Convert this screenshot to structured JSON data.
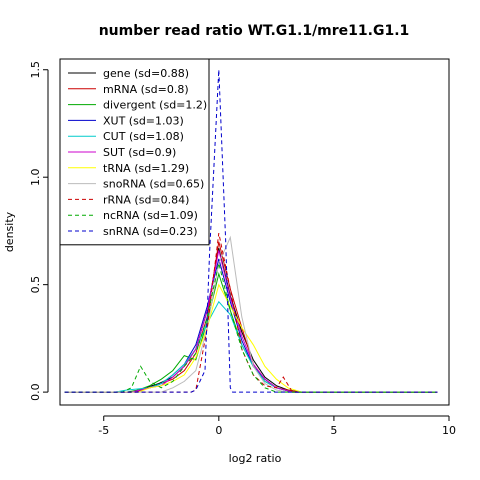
{
  "chart_data": {
    "type": "line",
    "title": "number read ratio WT.G1.1/mre11.G1.1",
    "xlabel": "log2 ratio",
    "ylabel": "density",
    "xlim": [
      -6.9,
      10.0
    ],
    "ylim": [
      -0.06,
      1.55
    ],
    "xticks": [
      -5,
      0,
      5,
      10
    ],
    "yticks": [
      0.0,
      0.5,
      1.0,
      1.5
    ],
    "xtick_labels": [
      "-5",
      "0",
      "5",
      "10"
    ],
    "ytick_labels": [
      "0.0",
      "0.5",
      "1.0",
      "1.5"
    ],
    "grid": false,
    "legend_position": "top-left",
    "series": [
      {
        "name": "gene (sd=0.88)",
        "color": "#000000",
        "dash": "solid",
        "points": [
          [
            -6.7,
            0
          ],
          [
            -3.8,
            0
          ],
          [
            -3.2,
            0.02
          ],
          [
            -2.6,
            0.04
          ],
          [
            -2.0,
            0.07
          ],
          [
            -1.5,
            0.12
          ],
          [
            -1.0,
            0.2
          ],
          [
            -0.5,
            0.38
          ],
          [
            0.0,
            0.67
          ],
          [
            0.5,
            0.45
          ],
          [
            1.0,
            0.28
          ],
          [
            1.5,
            0.15
          ],
          [
            2.0,
            0.07
          ],
          [
            2.5,
            0.03
          ],
          [
            3.0,
            0.01
          ],
          [
            3.6,
            0
          ],
          [
            9.5,
            0
          ]
        ]
      },
      {
        "name": "mRNA (sd=0.8)",
        "color": "#cc0000",
        "dash": "solid",
        "points": [
          [
            -6.7,
            0
          ],
          [
            -3.6,
            0
          ],
          [
            -3.0,
            0.02
          ],
          [
            -2.5,
            0.04
          ],
          [
            -2.0,
            0.06
          ],
          [
            -1.5,
            0.1
          ],
          [
            -1.0,
            0.18
          ],
          [
            -0.5,
            0.35
          ],
          [
            0.0,
            0.7
          ],
          [
            0.5,
            0.48
          ],
          [
            1.0,
            0.3
          ],
          [
            1.5,
            0.13
          ],
          [
            2.0,
            0.06
          ],
          [
            2.5,
            0.02
          ],
          [
            3.0,
            0.01
          ],
          [
            3.5,
            0
          ],
          [
            9.5,
            0
          ]
        ]
      },
      {
        "name": "divergent (sd=1.2)",
        "color": "#00aa00",
        "dash": "solid",
        "points": [
          [
            -6.7,
            0
          ],
          [
            -4.0,
            0
          ],
          [
            -3.5,
            0.01
          ],
          [
            -3.0,
            0.03
          ],
          [
            -2.5,
            0.06
          ],
          [
            -2.0,
            0.1
          ],
          [
            -1.5,
            0.17
          ],
          [
            -1.0,
            0.15
          ],
          [
            -0.5,
            0.33
          ],
          [
            0.0,
            0.55
          ],
          [
            0.5,
            0.38
          ],
          [
            1.0,
            0.22
          ],
          [
            1.5,
            0.12
          ],
          [
            2.0,
            0.05
          ],
          [
            2.5,
            0.02
          ],
          [
            3.2,
            0
          ],
          [
            9.5,
            0
          ]
        ]
      },
      {
        "name": "XUT (sd=1.03)",
        "color": "#0000cc",
        "dash": "solid",
        "points": [
          [
            -6.7,
            0
          ],
          [
            -3.8,
            0
          ],
          [
            -3.0,
            0.02
          ],
          [
            -2.5,
            0.04
          ],
          [
            -2.0,
            0.08
          ],
          [
            -1.5,
            0.13
          ],
          [
            -1.0,
            0.22
          ],
          [
            -0.5,
            0.4
          ],
          [
            0.0,
            0.62
          ],
          [
            0.5,
            0.42
          ],
          [
            1.0,
            0.24
          ],
          [
            1.5,
            0.12
          ],
          [
            2.0,
            0.06
          ],
          [
            2.5,
            0.02
          ],
          [
            3.2,
            0
          ],
          [
            9.5,
            0
          ]
        ]
      },
      {
        "name": "CUT (sd=1.08)",
        "color": "#00cccc",
        "dash": "solid",
        "points": [
          [
            -6.7,
            0
          ],
          [
            -4.5,
            0
          ],
          [
            -4.0,
            0.01
          ],
          [
            -3.0,
            0.02
          ],
          [
            -2.5,
            0.04
          ],
          [
            -2.0,
            0.08
          ],
          [
            -1.5,
            0.13
          ],
          [
            -1.0,
            0.2
          ],
          [
            -0.5,
            0.32
          ],
          [
            0.0,
            0.42
          ],
          [
            0.5,
            0.36
          ],
          [
            1.0,
            0.22
          ],
          [
            1.5,
            0.12
          ],
          [
            2.0,
            0.05
          ],
          [
            2.5,
            0.02
          ],
          [
            3.2,
            0
          ],
          [
            9.5,
            0
          ]
        ]
      },
      {
        "name": "SUT (sd=0.9)",
        "color": "#cc00cc",
        "dash": "solid",
        "points": [
          [
            -6.7,
            0
          ],
          [
            -3.8,
            0
          ],
          [
            -3.0,
            0.02
          ],
          [
            -2.5,
            0.03
          ],
          [
            -2.0,
            0.07
          ],
          [
            -1.5,
            0.12
          ],
          [
            -1.0,
            0.2
          ],
          [
            -0.5,
            0.38
          ],
          [
            0.0,
            0.66
          ],
          [
            0.5,
            0.44
          ],
          [
            1.0,
            0.26
          ],
          [
            1.5,
            0.13
          ],
          [
            2.0,
            0.06
          ],
          [
            2.5,
            0.02
          ],
          [
            3.2,
            0
          ],
          [
            9.5,
            0
          ]
        ]
      },
      {
        "name": "tRNA (sd=1.29)",
        "color": "#ffff00",
        "dash": "solid",
        "points": [
          [
            -6.7,
            0
          ],
          [
            -3.5,
            0
          ],
          [
            -3.0,
            0.02
          ],
          [
            -2.5,
            0.03
          ],
          [
            -2.0,
            0.05
          ],
          [
            -1.5,
            0.08
          ],
          [
            -1.0,
            0.16
          ],
          [
            -0.5,
            0.3
          ],
          [
            0.0,
            0.5
          ],
          [
            0.5,
            0.4
          ],
          [
            1.0,
            0.3
          ],
          [
            1.5,
            0.22
          ],
          [
            2.0,
            0.12
          ],
          [
            2.5,
            0.06
          ],
          [
            3.0,
            0.02
          ],
          [
            3.6,
            0
          ],
          [
            9.5,
            0
          ]
        ]
      },
      {
        "name": "snoRNA (sd=0.65)",
        "color": "#bbbbbb",
        "dash": "solid",
        "points": [
          [
            -6.7,
            0
          ],
          [
            -2.5,
            0
          ],
          [
            -2.0,
            0.02
          ],
          [
            -1.5,
            0.05
          ],
          [
            -1.0,
            0.1
          ],
          [
            -0.5,
            0.3
          ],
          [
            0.0,
            0.6
          ],
          [
            0.5,
            0.72
          ],
          [
            1.0,
            0.35
          ],
          [
            1.5,
            0.12
          ],
          [
            2.0,
            0.04
          ],
          [
            2.5,
            0.01
          ],
          [
            3.0,
            0
          ],
          [
            9.5,
            0
          ]
        ]
      },
      {
        "name": "rRNA (sd=0.84)",
        "color": "#cc0000",
        "dash": "dashed",
        "points": [
          [
            -6.7,
            0
          ],
          [
            -1.2,
            0
          ],
          [
            -1.0,
            0.01
          ],
          [
            -0.5,
            0.3
          ],
          [
            0.0,
            0.74
          ],
          [
            0.5,
            0.48
          ],
          [
            1.0,
            0.2
          ],
          [
            1.5,
            0.08
          ],
          [
            2.0,
            0.03
          ],
          [
            2.5,
            0.02
          ],
          [
            2.8,
            0.07
          ],
          [
            3.2,
            0
          ],
          [
            9.5,
            0
          ]
        ]
      },
      {
        "name": "ncRNA (sd=1.09)",
        "color": "#00aa00",
        "dash": "dashed",
        "points": [
          [
            -6.7,
            0
          ],
          [
            -4.2,
            0
          ],
          [
            -3.8,
            0.02
          ],
          [
            -3.4,
            0.12
          ],
          [
            -3.0,
            0.05
          ],
          [
            -2.5,
            0.02
          ],
          [
            -2.0,
            0.05
          ],
          [
            -1.5,
            0.12
          ],
          [
            -1.0,
            0.18
          ],
          [
            -0.5,
            0.35
          ],
          [
            0.0,
            0.6
          ],
          [
            0.5,
            0.38
          ],
          [
            1.0,
            0.2
          ],
          [
            1.5,
            0.08
          ],
          [
            2.0,
            0.02
          ],
          [
            2.5,
            0
          ],
          [
            9.5,
            0
          ]
        ]
      },
      {
        "name": "snRNA (sd=0.23)",
        "color": "#0000cc",
        "dash": "dashed",
        "points": [
          [
            -6.7,
            0
          ],
          [
            -1.2,
            0
          ],
          [
            -1.0,
            0.01
          ],
          [
            -0.6,
            0.1
          ],
          [
            -0.4,
            0.65
          ],
          [
            0.0,
            1.5
          ],
          [
            0.3,
            0.7
          ],
          [
            0.5,
            0.02
          ],
          [
            0.6,
            0
          ],
          [
            9.5,
            0
          ]
        ]
      }
    ]
  }
}
